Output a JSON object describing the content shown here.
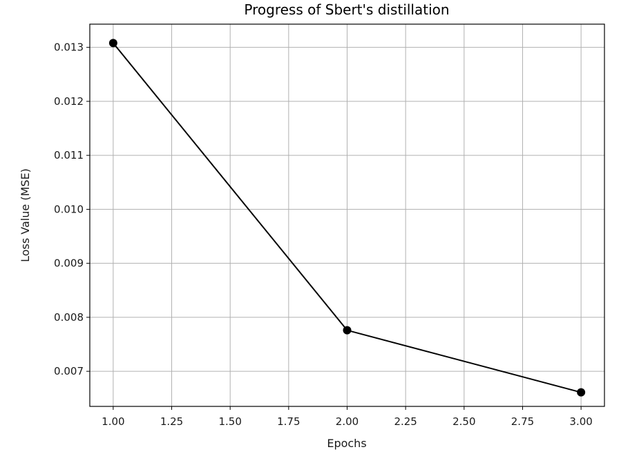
{
  "chart_data": {
    "type": "line",
    "title": "Progress of Sbert's distillation",
    "xlabel": "Epochs",
    "ylabel": "Loss Value (MSE)",
    "x": [
      1.0,
      2.0,
      3.0
    ],
    "series": [
      {
        "values": [
          0.01308,
          0.00776,
          0.00661
        ],
        "color": "#000000",
        "marker": "circle"
      }
    ],
    "xlim": [
      0.9,
      3.1
    ],
    "ylim": [
      0.00635,
      0.01343
    ],
    "xticks": [
      1.0,
      1.25,
      1.5,
      1.75,
      2.0,
      2.25,
      2.5,
      2.75,
      3.0
    ],
    "xtick_labels": [
      "1.00",
      "1.25",
      "1.50",
      "1.75",
      "2.00",
      "2.25",
      "2.50",
      "2.75",
      "3.00"
    ],
    "yticks": [
      0.007,
      0.008,
      0.009,
      0.01,
      0.011,
      0.012,
      0.013
    ],
    "ytick_labels": [
      "0.007",
      "0.008",
      "0.009",
      "0.010",
      "0.011",
      "0.012",
      "0.013"
    ],
    "grid": true,
    "legend": "none"
  }
}
